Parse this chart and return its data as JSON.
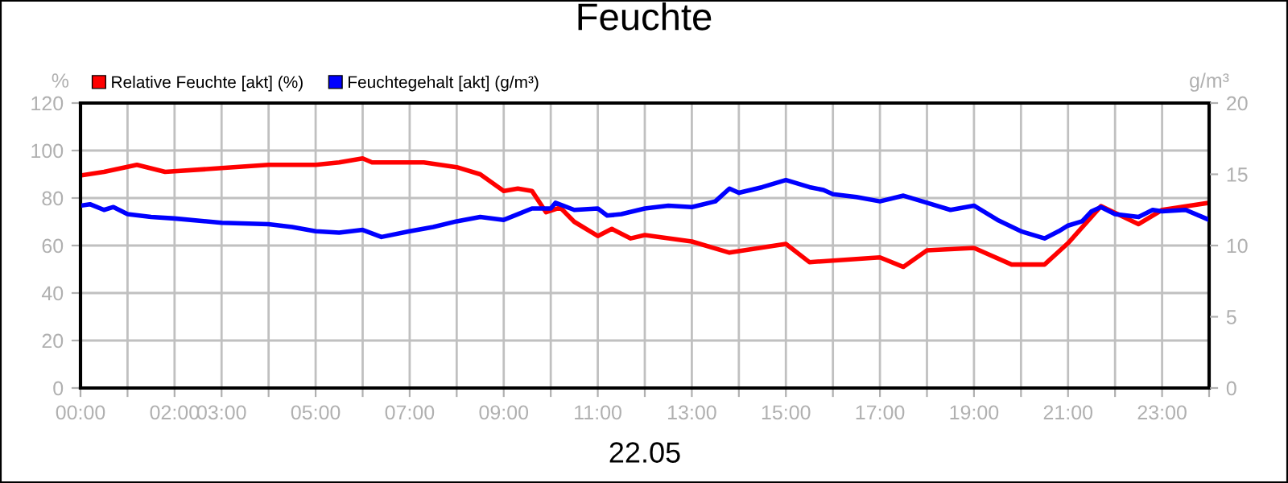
{
  "chart_data": {
    "type": "line",
    "title": "Feuchte",
    "xlabel": "22.05",
    "ylabel": "%",
    "y2label": "g/m³",
    "xlim": [
      0,
      24
    ],
    "xticks": [
      {
        "value": 0,
        "label": "00:00"
      },
      {
        "value": 1,
        "label": null
      },
      {
        "value": 2,
        "label": "02:00"
      },
      {
        "value": 3,
        "label": "03:00"
      },
      {
        "value": 4,
        "label": null
      },
      {
        "value": 5,
        "label": "05:00"
      },
      {
        "value": 6,
        "label": null
      },
      {
        "value": 7,
        "label": "07:00"
      },
      {
        "value": 8,
        "label": null
      },
      {
        "value": 9,
        "label": "09:00"
      },
      {
        "value": 10,
        "label": null
      },
      {
        "value": 11,
        "label": "11:00"
      },
      {
        "value": 12,
        "label": null
      },
      {
        "value": 13,
        "label": "13:00"
      },
      {
        "value": 14,
        "label": null
      },
      {
        "value": 15,
        "label": "15:00"
      },
      {
        "value": 16,
        "label": null
      },
      {
        "value": 17,
        "label": "17:00"
      },
      {
        "value": 18,
        "label": null
      },
      {
        "value": 19,
        "label": "19:00"
      },
      {
        "value": 20,
        "label": null
      },
      {
        "value": 21,
        "label": "21:00"
      },
      {
        "value": 22,
        "label": null
      },
      {
        "value": 23,
        "label": "23:00"
      },
      {
        "value": 24,
        "label": null
      }
    ],
    "ylim": [
      0,
      120
    ],
    "yticks": [
      0,
      20,
      40,
      60,
      80,
      100,
      120
    ],
    "y2lim": [
      0,
      20
    ],
    "y2ticks": [
      0,
      5,
      10,
      15,
      20
    ],
    "grid": true,
    "legend": "top left",
    "line_style": "solid",
    "marker": "none",
    "series": [
      {
        "name": "Relative Feuchte [akt] (%)",
        "color": "#ff0000",
        "x": [
          0,
          0.5,
          1.2,
          1.8,
          3,
          4,
          5,
          5.5,
          6.0,
          6.2,
          7.3,
          8.0,
          8.5,
          9.0,
          9.3,
          9.6,
          9.9,
          10.2,
          10.5,
          11.0,
          11.3,
          11.7,
          12.0,
          13.0,
          13.8,
          15.0,
          15.5,
          17.0,
          17.5,
          18.0,
          19.0,
          19.8,
          20.5,
          21.0,
          21.7,
          22.5,
          23.0,
          24.0
        ],
        "values": [
          89.5,
          91,
          94,
          91,
          92.6,
          94,
          94,
          95,
          96.7,
          95,
          95,
          93,
          90,
          83,
          84,
          83,
          74,
          76,
          70,
          64,
          67,
          63,
          64.4,
          61.7,
          57,
          60.7,
          53,
          55,
          51,
          58,
          59,
          52,
          52,
          61,
          76.6,
          69,
          75,
          78
        ]
      },
      {
        "name": "Feuchtegehalt [akt] (g/m³)",
        "color": "#0000ff",
        "axis": "y2",
        "x": [
          0,
          0.2,
          0.5,
          0.7,
          1.0,
          1.5,
          2,
          3,
          4,
          4.5,
          5,
          5.5,
          6,
          6.4,
          7,
          7.5,
          8,
          8.5,
          9.0,
          9.3,
          9.6,
          10,
          10.1,
          10.5,
          11,
          11.2,
          11.5,
          12,
          12.5,
          13.0,
          13.5,
          13.8,
          14,
          14.5,
          15.0,
          15.5,
          15.8,
          16.0,
          16.5,
          17.0,
          17.5,
          18.0,
          18.5,
          19.0,
          19.5,
          20.0,
          20.5,
          20.8,
          21.0,
          21.3,
          21.5,
          21.7,
          22.0,
          22.5,
          22.8,
          23.0,
          23.5,
          24
        ],
        "values": [
          12.8,
          12.9,
          12.5,
          12.7,
          12.2,
          12.0,
          11.9,
          11.6,
          11.5,
          11.3,
          11.0,
          10.9,
          11.1,
          10.6,
          11.0,
          11.3,
          11.7,
          12.0,
          11.8,
          12.2,
          12.6,
          12.6,
          13.0,
          12.5,
          12.6,
          12.1,
          12.2,
          12.6,
          12.8,
          12.7,
          13.1,
          14.0,
          13.7,
          14.1,
          14.6,
          14.1,
          13.9,
          13.6,
          13.4,
          13.1,
          13.5,
          13.0,
          12.5,
          12.8,
          11.8,
          11.0,
          10.5,
          11.0,
          11.4,
          11.7,
          12.4,
          12.7,
          12.2,
          12.0,
          12.5,
          12.4,
          12.5,
          11.8
        ]
      }
    ]
  }
}
